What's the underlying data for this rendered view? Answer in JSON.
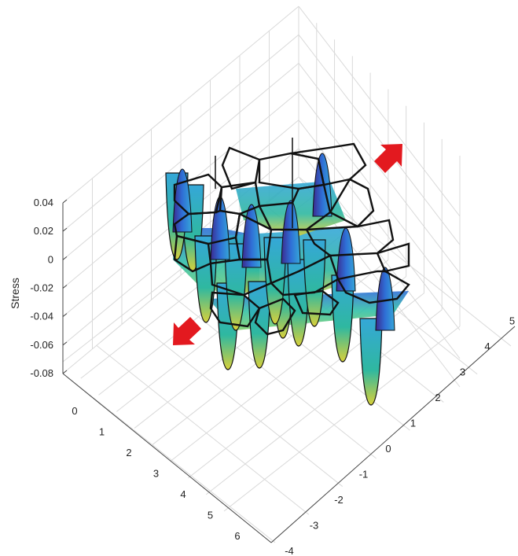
{
  "chart_data": {
    "type": "surface3d",
    "title": "",
    "zlabel": "Stress",
    "xlabel": "",
    "ylabel": "",
    "zlim": [
      -0.08,
      0.04
    ],
    "z_ticks": [
      "0.04",
      "0.02",
      "0",
      "-0.02",
      "-0.04",
      "-0.06",
      "-0.08"
    ],
    "x_ticks": [
      "0",
      "1",
      "2",
      "3",
      "4",
      "5",
      "6"
    ],
    "y_ticks": [
      "-4",
      "-3",
      "-2",
      "-1",
      "0",
      "1",
      "2",
      "3",
      "4",
      "5"
    ],
    "grid": true,
    "colormap": [
      "#3a2a8f",
      "#2f6fd6",
      "#35a7d8",
      "#33c0a8",
      "#7fd06a",
      "#d8d03a",
      "#f2e532"
    ],
    "mesh_edge_color": "#111111",
    "arrow_color": "#e3191f",
    "annotations": [
      {
        "type": "arrow",
        "direction": "up-right",
        "meaning": "load direction"
      },
      {
        "type": "arrow",
        "direction": "down-left",
        "meaning": "load direction"
      }
    ]
  }
}
